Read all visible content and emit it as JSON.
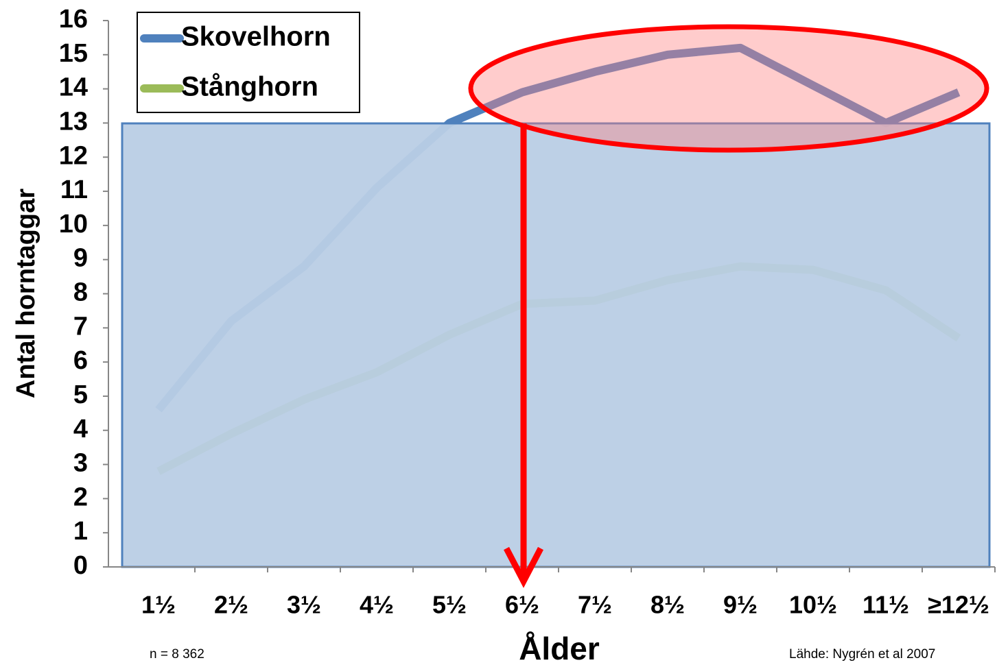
{
  "chart_data": {
    "type": "line",
    "categories": [
      "1½",
      "2½",
      "3½",
      "4½",
      "5½",
      "6½",
      "7½",
      "8½",
      "9½",
      "10½",
      "11½",
      "≥12½"
    ],
    "series": [
      {
        "name": "Skovelhorn",
        "color": "#4f81bd",
        "values": [
          4.6,
          7.2,
          8.8,
          11.1,
          13.0,
          13.9,
          14.5,
          15.0,
          15.2,
          14.1,
          13.0,
          13.9
        ]
      },
      {
        "name": "Stånghorn",
        "color": "#9bbb59",
        "values": [
          2.8,
          3.9,
          4.9,
          5.7,
          6.8,
          7.7,
          7.8,
          8.4,
          8.8,
          8.7,
          8.1,
          6.7
        ]
      }
    ],
    "ylim": [
      0,
      16
    ],
    "yticks": [
      0,
      1,
      2,
      3,
      4,
      5,
      6,
      7,
      8,
      9,
      10,
      11,
      12,
      13,
      14,
      15,
      16
    ],
    "x_label": "Ålder",
    "y_label": "Antal horntaggar",
    "annotations": [
      "n = 8 362",
      "Lähde: Nygrén et al 2007"
    ],
    "legend": "top-left"
  }
}
